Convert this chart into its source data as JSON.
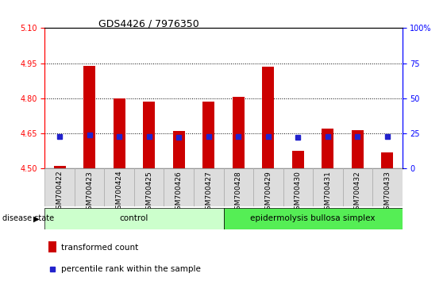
{
  "title": "GDS4426 / 7976350",
  "samples": [
    "GSM700422",
    "GSM700423",
    "GSM700424",
    "GSM700425",
    "GSM700426",
    "GSM700427",
    "GSM700428",
    "GSM700429",
    "GSM700430",
    "GSM700431",
    "GSM700432",
    "GSM700433"
  ],
  "bar_tops": [
    4.51,
    4.94,
    4.8,
    4.785,
    4.66,
    4.785,
    4.805,
    4.935,
    4.575,
    4.67,
    4.665,
    4.57
  ],
  "bar_bottoms": [
    4.5,
    4.5,
    4.5,
    4.5,
    4.5,
    4.5,
    4.5,
    4.5,
    4.5,
    4.5,
    4.5,
    4.5
  ],
  "percentile_values": [
    4.636,
    4.643,
    4.638,
    4.638,
    4.635,
    4.638,
    4.638,
    4.638,
    4.633,
    4.636,
    4.637,
    4.636
  ],
  "ylim_left": [
    4.5,
    5.1
  ],
  "yticks_left": [
    4.5,
    4.65,
    4.8,
    4.95,
    5.1
  ],
  "yticks_right": [
    0,
    25,
    50,
    75,
    100
  ],
  "bar_color": "#cc0000",
  "marker_color": "#2222cc",
  "control_samples": 6,
  "control_label": "control",
  "disease_label": "epidermolysis bullosa simplex",
  "disease_state_label": "disease state",
  "control_bg": "#ccffcc",
  "disease_bg": "#55ee55",
  "legend_bar_label": "transformed count",
  "legend_marker_label": "percentile rank within the sample",
  "grid_yticks": [
    4.65,
    4.8,
    4.95
  ],
  "bar_width": 0.4
}
